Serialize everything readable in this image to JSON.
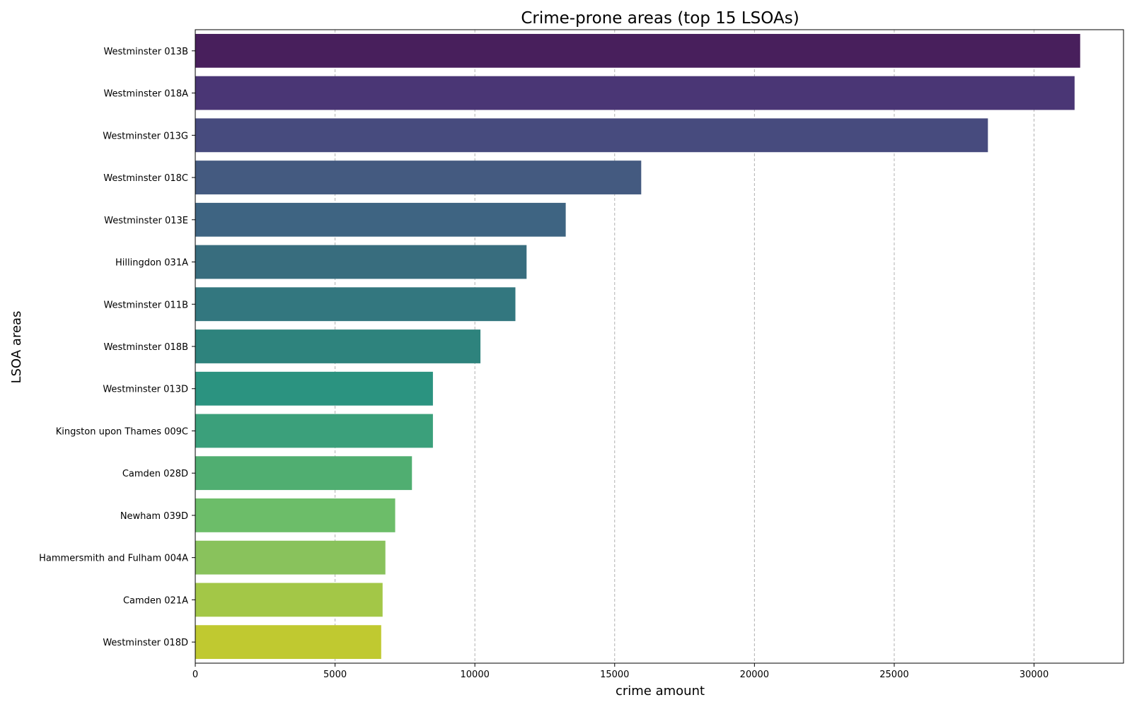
{
  "chart_data": {
    "type": "bar",
    "orientation": "horizontal",
    "title": "Crime-prone areas (top 15 LSOAs)",
    "xlabel": "crime amount",
    "ylabel": "LSOA areas",
    "xlim": [
      0,
      33200
    ],
    "xticks": [
      0,
      5000,
      10000,
      15000,
      20000,
      25000,
      30000
    ],
    "grid": "x, dashed",
    "categories": [
      "Westminster 013B",
      "Westminster 018A",
      "Westminster 013G",
      "Westminster 018C",
      "Westminster 013E",
      "Hillingdon 031A",
      "Westminster 011B",
      "Westminster 018B",
      "Westminster 013D",
      "Kingston upon Thames 009C",
      "Camden 028D",
      "Newham 039D",
      "Hammersmith and Fulham 004A",
      "Camden 021A",
      "Westminster 018D"
    ],
    "values": [
      31650,
      31450,
      28350,
      15950,
      13250,
      11850,
      11450,
      10200,
      8500,
      8500,
      7750,
      7150,
      6800,
      6700,
      6650
    ],
    "colors": [
      "#481f5c",
      "#4a3675",
      "#474b7e",
      "#445a80",
      "#3e6482",
      "#386d7e",
      "#33777f",
      "#2e837d",
      "#2b9380",
      "#3ba07b",
      "#50ae71",
      "#6cbd69",
      "#89c25c",
      "#a3c747",
      "#c0c930"
    ]
  }
}
